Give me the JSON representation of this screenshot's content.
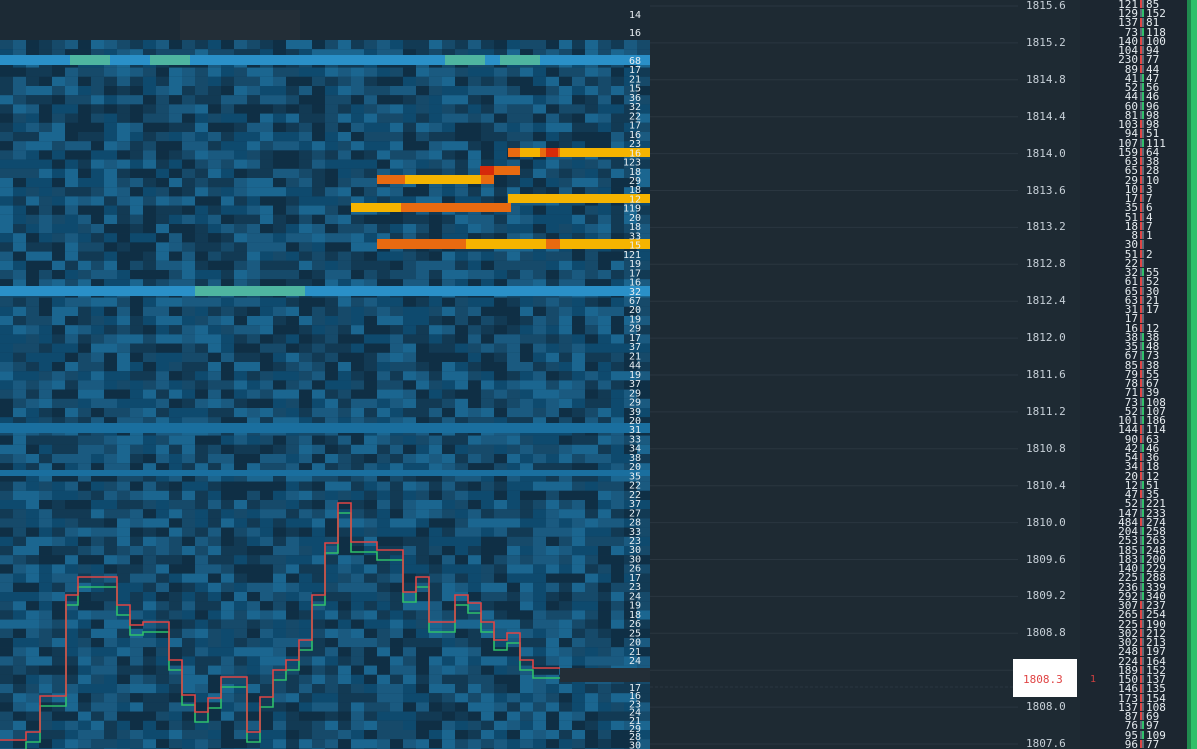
{
  "price_axis": {
    "ticks": [
      "1815.6",
      "1815.2",
      "1814.8",
      "1814.4",
      "1814.0",
      "1813.6",
      "1813.2",
      "1812.8",
      "1812.4",
      "1812.0",
      "1811.6",
      "1811.2",
      "1810.8",
      "1810.4",
      "1810.0",
      "1809.6",
      "1809.2",
      "1808.8",
      "1808.4",
      "1808.0",
      "1807.6"
    ]
  },
  "current_price": {
    "value": "1808.3",
    "marker": "1"
  },
  "book_sizes": {
    "top_rows": [
      "14",
      "16"
    ],
    "levels": [
      "68",
      "17",
      "21",
      "15",
      "36",
      "32",
      "22",
      "17",
      "16",
      "23",
      "16",
      "123",
      "18",
      "29",
      "18",
      "12",
      "119",
      "20",
      "18",
      "33",
      "15",
      "121",
      "19",
      "17",
      "16",
      "32",
      "67",
      "20",
      "19",
      "29",
      "17",
      "37",
      "21",
      "44",
      "19",
      "37",
      "29",
      "29",
      "39",
      "20",
      "31",
      "33",
      "34",
      "38",
      "20",
      "35",
      "22",
      "22",
      "37",
      "27",
      "28",
      "33",
      "23",
      "30",
      "30",
      "26",
      "17",
      "23",
      "24",
      "19",
      "18",
      "26",
      "25",
      "20",
      "21",
      "24"
    ],
    "bottom_rows": [
      "17",
      "16",
      "23",
      "24",
      "21",
      "29",
      "28",
      "30"
    ]
  },
  "volume_profile": {
    "left": [
      "121",
      "129",
      "137",
      "73",
      "140",
      "104",
      "230",
      "89",
      "41",
      "52",
      "44",
      "60",
      "81",
      "103",
      "94",
      "107",
      "159",
      "63",
      "65",
      "29",
      "10",
      "17",
      "35",
      "51",
      "18",
      "8",
      "30",
      "51",
      "22",
      "32",
      "61",
      "65",
      "63",
      "31",
      "17",
      "16",
      "38",
      "35",
      "67",
      "85",
      "79",
      "78",
      "71",
      "73",
      "52",
      "101",
      "144",
      "90",
      "42",
      "54",
      "34",
      "20",
      "12",
      "47",
      "52",
      "147",
      "484",
      "204",
      "253",
      "185",
      "183",
      "140",
      "225",
      "236",
      "292",
      "307",
      "265",
      "225",
      "302",
      "302",
      "248",
      "224",
      "189",
      "150",
      "146",
      "173",
      "137",
      "87",
      "76",
      "95",
      "96"
    ],
    "right": [
      "85",
      "152",
      "81",
      "118",
      "100",
      "94",
      "77",
      "44",
      "47",
      "56",
      "46",
      "96",
      "98",
      "98",
      "51",
      "111",
      "64",
      "38",
      "28",
      "10",
      "3",
      "7",
      "6",
      "4",
      "7",
      "1",
      "",
      "2",
      "",
      "55",
      "52",
      "30",
      "21",
      "17",
      "",
      "12",
      "38",
      "48",
      "73",
      "38",
      "55",
      "67",
      "39",
      "108",
      "107",
      "186",
      "114",
      "63",
      "46",
      "36",
      "18",
      "12",
      "51",
      "35",
      "221",
      "233",
      "274",
      "258",
      "263",
      "248",
      "200",
      "229",
      "288",
      "339",
      "340",
      "237",
      "254",
      "190",
      "212",
      "213",
      "197",
      "164",
      "152",
      "137",
      "135",
      "154",
      "108",
      "69",
      "97",
      "109",
      "77"
    ]
  },
  "colors": {
    "background": "#1e2a33",
    "heat_low": "#123a54",
    "heat_mid": "#1a6f9f",
    "heat_high": "#2a90c8",
    "heat_teal": "#4fb5a0",
    "order_orange": "#e86a10",
    "order_yellow": "#f5b400",
    "order_red": "#d62a0a",
    "trade_up": "#2fc06a",
    "trade_down": "#e04545"
  }
}
